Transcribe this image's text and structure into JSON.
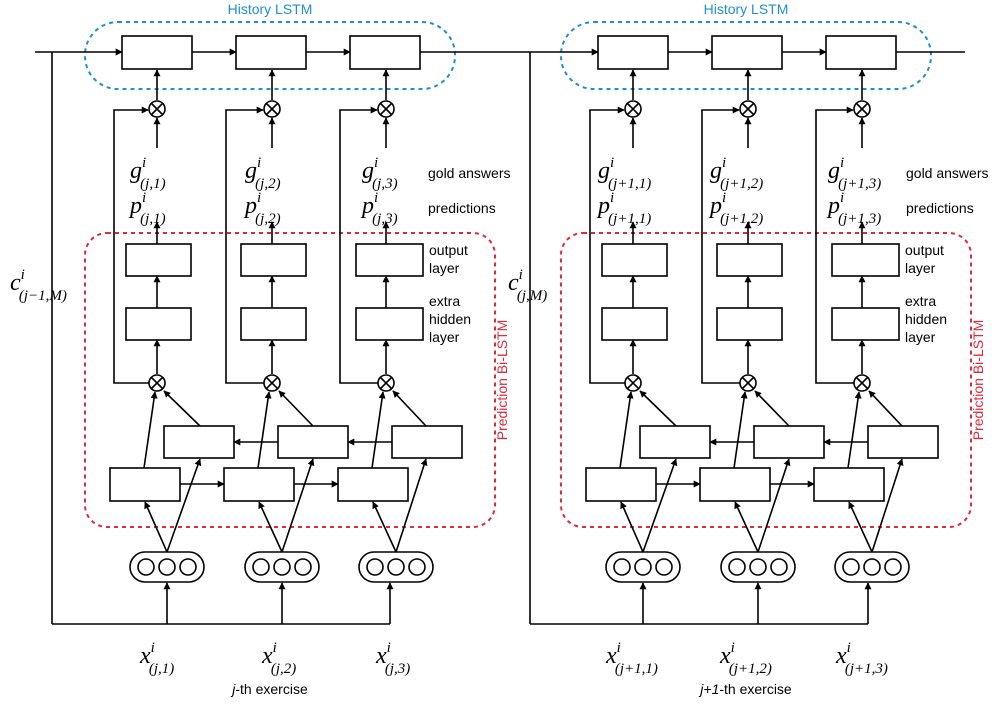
{
  "colors": {
    "history": "#1f8fd0",
    "prediction": "#e02a3c",
    "stroke": "#000000"
  },
  "panels": [
    {
      "history_title": "History LSTM",
      "prediction_title": "Prediction Bi-LSTM",
      "carry_in": {
        "base": "c",
        "sup": "i",
        "sub": "(j−1,M)"
      },
      "gold_label": "gold answers",
      "pred_label": "predictions",
      "output_layer_label": [
        "output",
        "layer"
      ],
      "hidden_layer_label": [
        "extra",
        "hidden",
        "layer"
      ],
      "columns": [
        {
          "g": {
            "base": "g",
            "sup": "i",
            "sub": "(j,1)"
          },
          "p": {
            "base": "p",
            "sup": "i",
            "sub": "(j,1)"
          },
          "x": {
            "base": "x",
            "sup": "i",
            "sub": "(j,1)"
          }
        },
        {
          "g": {
            "base": "g",
            "sup": "i",
            "sub": "(j,2)"
          },
          "p": {
            "base": "p",
            "sup": "i",
            "sub": "(j,2)"
          },
          "x": {
            "base": "x",
            "sup": "i",
            "sub": "(j,2)"
          }
        },
        {
          "g": {
            "base": "g",
            "sup": "i",
            "sub": "(j,3)"
          },
          "p": {
            "base": "p",
            "sup": "i",
            "sub": "(j,3)"
          },
          "x": {
            "base": "x",
            "sup": "i",
            "sub": "(j,3)"
          }
        }
      ],
      "caption": {
        "emph": "j",
        "rest": "-th exercise"
      }
    },
    {
      "history_title": "History LSTM",
      "prediction_title": "Prediction Bi-LSTM",
      "carry_in": {
        "base": "c",
        "sup": "i",
        "sub": "(j,M)"
      },
      "gold_label": "gold answers",
      "pred_label": "predictions",
      "output_layer_label": [
        "output",
        "layer"
      ],
      "hidden_layer_label": [
        "extra",
        "hidden",
        "layer"
      ],
      "columns": [
        {
          "g": {
            "base": "g",
            "sup": "i",
            "sub": "(j+1,1)"
          },
          "p": {
            "base": "p",
            "sup": "i",
            "sub": "(j+1,1)"
          },
          "x": {
            "base": "x",
            "sup": "i",
            "sub": "(j+1,1)"
          }
        },
        {
          "g": {
            "base": "g",
            "sup": "i",
            "sub": "(j+1,2)"
          },
          "p": {
            "base": "p",
            "sup": "i",
            "sub": "(j+1,2)"
          },
          "x": {
            "base": "x",
            "sup": "i",
            "sub": "(j+1,2)"
          }
        },
        {
          "g": {
            "base": "g",
            "sup": "i",
            "sub": "(j+1,3)"
          },
          "p": {
            "base": "p",
            "sup": "i",
            "sub": "(j+1,3)"
          },
          "x": {
            "base": "x",
            "sup": "i",
            "sub": "(j+1,3)"
          }
        }
      ],
      "caption": {
        "emph": "j+1",
        "rest": "-th exercise"
      }
    }
  ]
}
